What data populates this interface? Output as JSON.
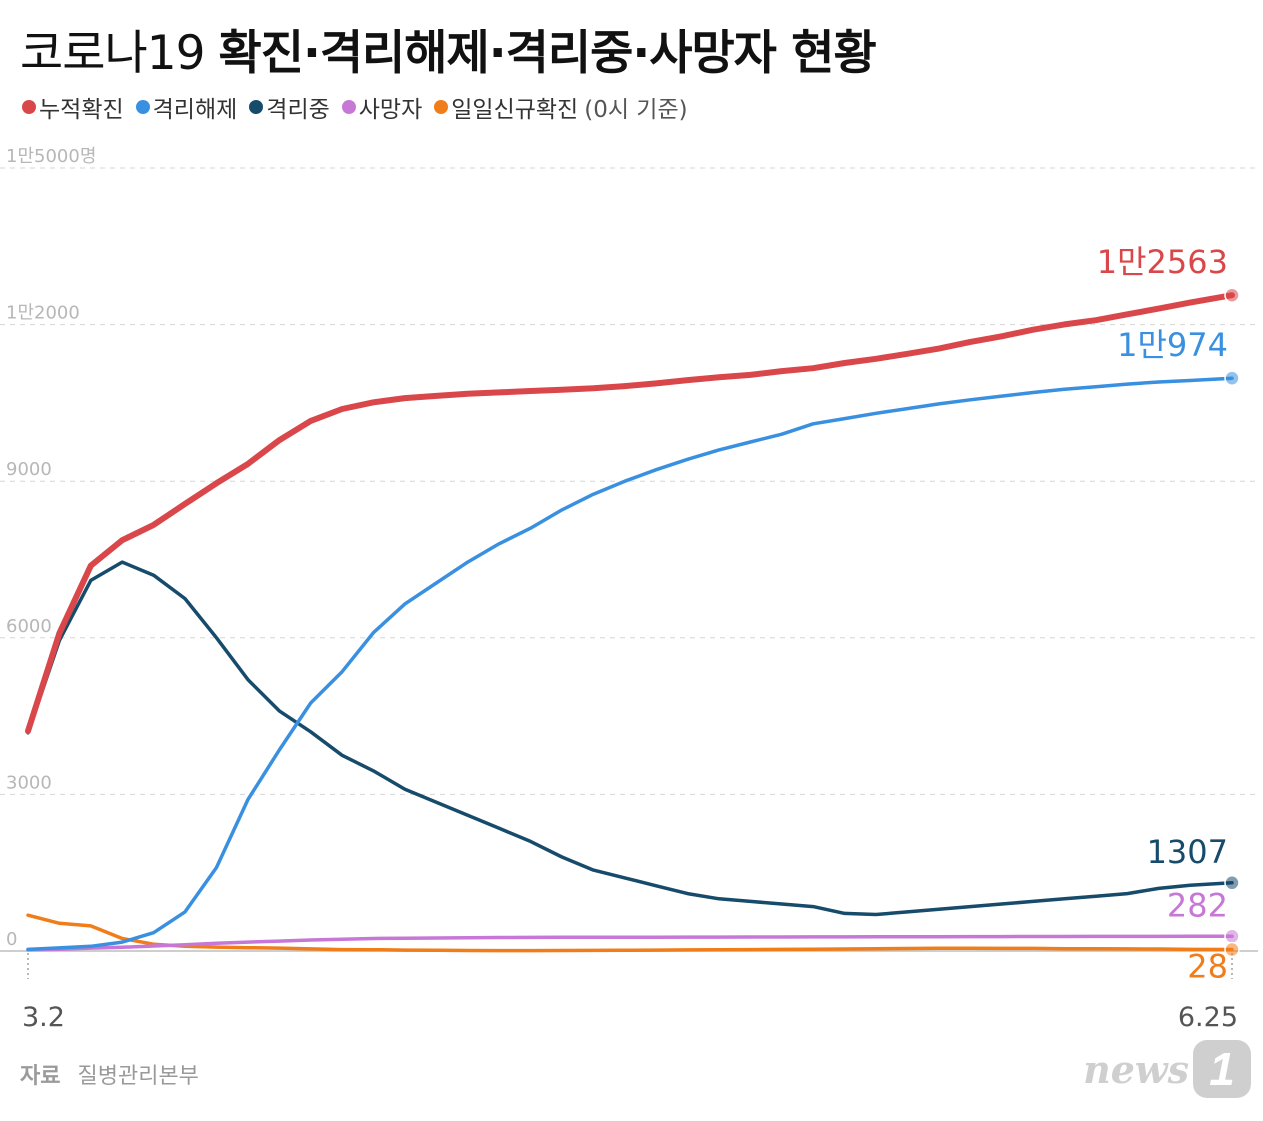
{
  "title": {
    "prefix": "코로나19",
    "main": "확진·격리해제·격리중·사망자 현황"
  },
  "legend": {
    "items": [
      {
        "label": "누적확진",
        "color": "#d9474a"
      },
      {
        "label": "격리해제",
        "color": "#3a90e0"
      },
      {
        "label": "격리중",
        "color": "#174b6b"
      },
      {
        "label": "사망자",
        "color": "#c778d6"
      },
      {
        "label": "일일신규확진",
        "color": "#f07d1a"
      }
    ],
    "note": "(0시 기준)"
  },
  "source": {
    "label": "자료",
    "value": "질병관리본부"
  },
  "logo": {
    "text": "news",
    "mark": "1"
  },
  "chart_data": {
    "type": "line",
    "x_start_label": "3.2",
    "x_end_label": "6.25",
    "x": [
      0,
      3,
      6,
      9,
      12,
      15,
      18,
      21,
      24,
      27,
      30,
      33,
      36,
      39,
      42,
      45,
      48,
      51,
      54,
      57,
      60,
      63,
      66,
      69,
      72,
      75,
      78,
      81,
      84,
      87,
      90,
      93,
      96,
      99,
      102,
      105,
      108,
      111,
      115
    ],
    "ylim": [
      0,
      15000
    ],
    "y_ticks": [
      {
        "value": 0,
        "label": "0"
      },
      {
        "value": 3000,
        "label": "3000"
      },
      {
        "value": 6000,
        "label": "6000"
      },
      {
        "value": 9000,
        "label": "9000"
      },
      {
        "value": 12000,
        "label": "1만2000"
      },
      {
        "value": 15000,
        "label": "1만5000명"
      }
    ],
    "grid": true,
    "series": [
      {
        "name": "누적확진",
        "color": "#d9474a",
        "end_label": "1만2563",
        "values": [
          4212,
          6088,
          7382,
          7869,
          8162,
          8565,
          8961,
          9332,
          9786,
          10156,
          10384,
          10512,
          10591,
          10635,
          10674,
          10702,
          10728,
          10752,
          10780,
          10822,
          10874,
          10936,
          10991,
          11037,
          11110,
          11165,
          11265,
          11344,
          11441,
          11541,
          11668,
          11776,
          11902,
          12003,
          12085,
          12198,
          12306,
          12421,
          12563
        ]
      },
      {
        "name": "격리해제",
        "color": "#3a90e0",
        "end_label": "1만974",
        "values": [
          30,
          60,
          90,
          170,
          350,
          750,
          1600,
          2900,
          3850,
          4750,
          5350,
          6100,
          6650,
          7050,
          7450,
          7800,
          8100,
          8450,
          8750,
          9000,
          9220,
          9420,
          9600,
          9750,
          9900,
          10100,
          10200,
          10300,
          10390,
          10480,
          10560,
          10630,
          10700,
          10760,
          10810,
          10860,
          10900,
          10930,
          10974
        ]
      },
      {
        "name": "격리중",
        "color": "#174b6b",
        "end_label": "1307",
        "values": [
          4180,
          5950,
          7100,
          7450,
          7200,
          6750,
          6000,
          5200,
          4600,
          4200,
          3750,
          3450,
          3100,
          2850,
          2600,
          2350,
          2100,
          1800,
          1550,
          1400,
          1250,
          1100,
          1000,
          950,
          900,
          850,
          720,
          700,
          750,
          800,
          850,
          900,
          950,
          1000,
          1050,
          1100,
          1200,
          1260,
          1307
        ]
      },
      {
        "name": "사망자",
        "color": "#c778d6",
        "end_label": "282",
        "values": [
          22,
          35,
          55,
          70,
          95,
          120,
          150,
          170,
          190,
          210,
          225,
          240,
          245,
          250,
          255,
          258,
          260,
          262,
          263,
          264,
          265,
          266,
          267,
          268,
          269,
          270,
          271,
          272,
          273,
          274,
          275,
          276,
          277,
          278,
          279,
          280,
          280,
          281,
          282
        ]
      },
      {
        "name": "일일신규확진",
        "color": "#f07d1a",
        "end_label": "28",
        "values": [
          686,
          530,
          480,
          240,
          130,
          90,
          75,
          64,
          56,
          40,
          27,
          25,
          18,
          14,
          10,
          8,
          8,
          9,
          11,
          14,
          17,
          22,
          25,
          27,
          30,
          34,
          38,
          45,
          48,
          51,
          52,
          50,
          49,
          45,
          42,
          40,
          39,
          30,
          28
        ]
      }
    ]
  }
}
